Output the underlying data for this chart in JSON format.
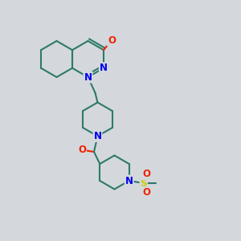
{
  "bg_color": "#d4d8dc",
  "bond_color": "#2d7a6a",
  "bond_width": 1.5,
  "atom_N_color": "#0000ee",
  "atom_O_color": "#ee2200",
  "atom_S_color": "#cccc00",
  "font_size_atom": 8.5,
  "xlim": [
    0,
    10
  ],
  "ylim": [
    0,
    10
  ]
}
